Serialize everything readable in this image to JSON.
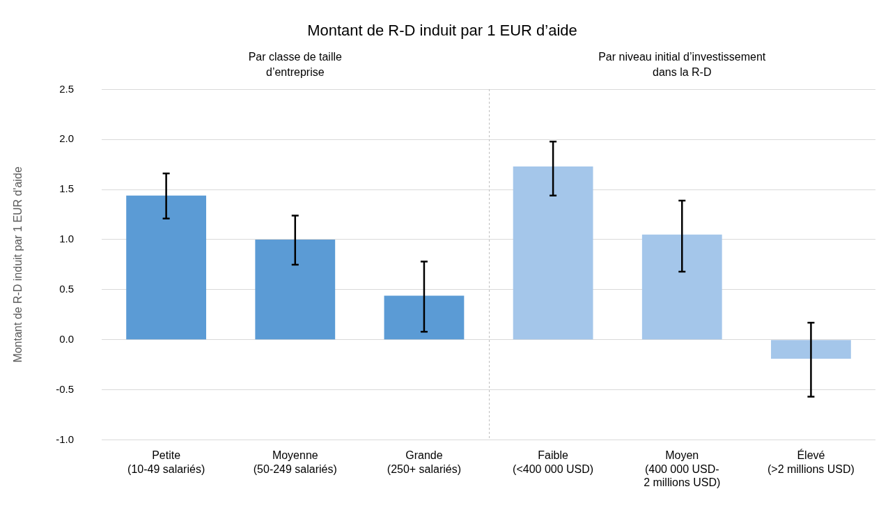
{
  "chart_data": {
    "type": "bar",
    "title": "Montant de R-D induit par 1 EUR d’aide",
    "ylabel": "Montant de R-D induit par 1 EUR d'aide",
    "categories": [
      "Petite\n(10-49 salariés)",
      "Moyenne\n(50-249 salariés)",
      "Grande\n(250+ salariés)",
      "Faible\n(<400 000 USD)",
      "Moyen\n(400 000 USD-\n2 millions USD)",
      "Élevé\n(>2 millions USD)"
    ],
    "values": [
      1.44,
      1.0,
      0.44,
      1.73,
      1.05,
      -0.19
    ],
    "colors": [
      "#5b9bd5",
      "#5b9bd5",
      "#5b9bd5",
      "#a4c6ea",
      "#a4c6ea",
      "#a4c6ea"
    ],
    "errors": [
      [
        1.21,
        1.66
      ],
      [
        0.75,
        1.24
      ],
      [
        0.08,
        0.78
      ],
      [
        1.44,
        1.98
      ],
      [
        0.68,
        1.39
      ],
      [
        -0.57,
        0.17
      ]
    ],
    "ylim": [
      -1.0,
      2.5
    ],
    "yticks": [
      {
        "value": -1.0,
        "label": "-1.0"
      },
      {
        "value": -0.5,
        "label": "-0.5"
      },
      {
        "value": 0,
        "label": "0.0"
      },
      {
        "value": 0.5,
        "label": "0.5"
      },
      {
        "value": 1.0,
        "label": "1.0"
      },
      {
        "value": 1.5,
        "label": "1.5"
      },
      {
        "value": 2.0,
        "label": "2.0"
      },
      {
        "value": 2.5,
        "label": "2.5"
      }
    ],
    "grid": "y",
    "annotations": [
      "Par classe de taille\nd’entreprise",
      "Par niveau initial d’investissement\ndans la R-D"
    ]
  }
}
